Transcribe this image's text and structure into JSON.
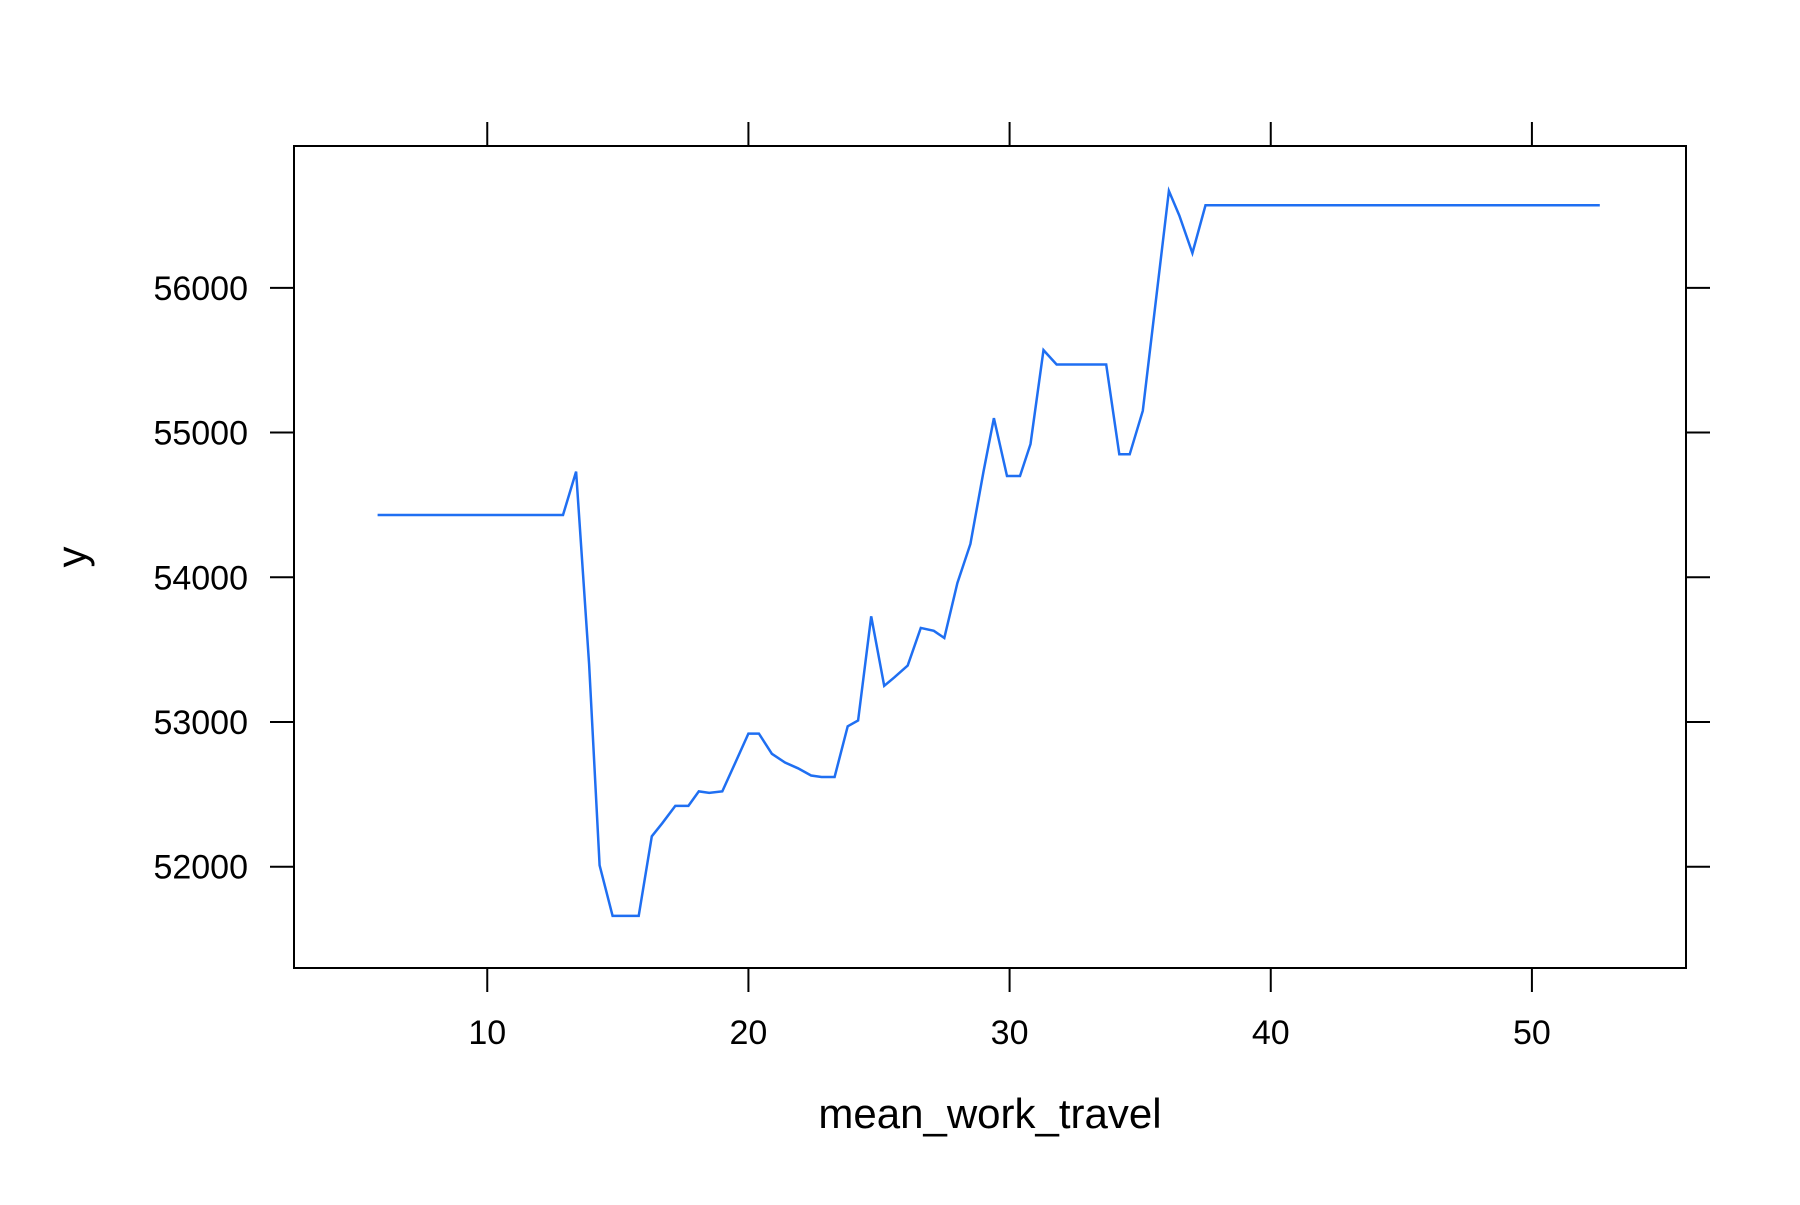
{
  "chart_data": {
    "type": "line",
    "title": "",
    "xlabel": "mean_work_travel",
    "ylabel": "y",
    "xlim": [
      2.6,
      55.9
    ],
    "ylim": [
      51300,
      56980
    ],
    "x_ticks": [
      10,
      20,
      30,
      40,
      50
    ],
    "y_ticks": [
      52000,
      53000,
      54000,
      55000,
      56000
    ],
    "grid": false,
    "legend": "none",
    "line_color": "#1f6ff2",
    "series": [
      {
        "x": [
          5.8,
          12.9,
          13.4,
          13.9,
          14.3,
          14.8,
          15.3,
          15.8,
          16.3,
          16.7,
          17.2,
          17.7,
          18.1,
          18.5,
          19.0,
          19.5,
          20.0,
          20.4,
          20.9,
          21.4,
          21.9,
          22.4,
          22.8,
          23.3,
          23.8,
          24.2,
          24.7,
          25.2,
          25.6,
          26.1,
          26.6,
          27.1,
          27.5,
          28.0,
          28.5,
          29.0,
          29.4,
          29.9,
          30.4,
          30.8,
          31.3,
          31.8,
          32.3,
          32.7,
          33.7,
          34.2,
          34.6,
          35.1,
          36.1,
          36.5,
          37.0,
          37.5,
          52.6
        ],
        "y": [
          54430,
          54430,
          54730,
          53400,
          52010,
          51660,
          51660,
          51660,
          52210,
          52300,
          52420,
          52420,
          52520,
          52510,
          52520,
          52720,
          52920,
          52920,
          52780,
          52720,
          52680,
          52630,
          52620,
          52620,
          52970,
          53010,
          53730,
          53250,
          53310,
          53390,
          53650,
          53630,
          53580,
          53960,
          54230,
          54730,
          55100,
          54700,
          54700,
          54920,
          55570,
          55470,
          55470,
          55470,
          55470,
          54850,
          54850,
          55150,
          56670,
          56500,
          56240,
          56570,
          56570
        ]
      }
    ]
  }
}
